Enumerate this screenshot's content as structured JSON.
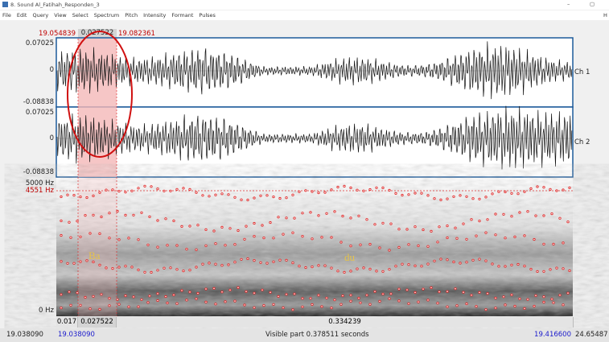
{
  "window": {
    "title": "8. Sound Al_Fatihah_Responden_3",
    "menu": [
      "File",
      "Edit",
      "Query",
      "View",
      "Select",
      "Spectrum",
      "Pitch",
      "Intensity",
      "Formant",
      "Pulses"
    ],
    "help": "H"
  },
  "selection": {
    "start": "19.054839",
    "duration": "0.027522",
    "end": "19.082361"
  },
  "channels": [
    {
      "name": "Ch 1",
      "max": "0.07025",
      "zero": "0",
      "min": "-0.08838"
    },
    {
      "name": "Ch 2",
      "max": "0.07025",
      "zero": "0",
      "min": "-0.08838"
    }
  ],
  "spectrogram": {
    "top": "5000 Hz",
    "cursor": "4551 Hz",
    "bottom": "0 Hz",
    "annotations": [
      "Ba",
      "du"
    ]
  },
  "footer": {
    "row1": [
      "0.017",
      "0.027522",
      "0.334239"
    ],
    "window_start": "19.038090",
    "visible_start": "19.038090",
    "visible_part": "Visible part 0.378511 seconds",
    "visible_end": "19.416600",
    "window_end": "24.65487"
  }
}
